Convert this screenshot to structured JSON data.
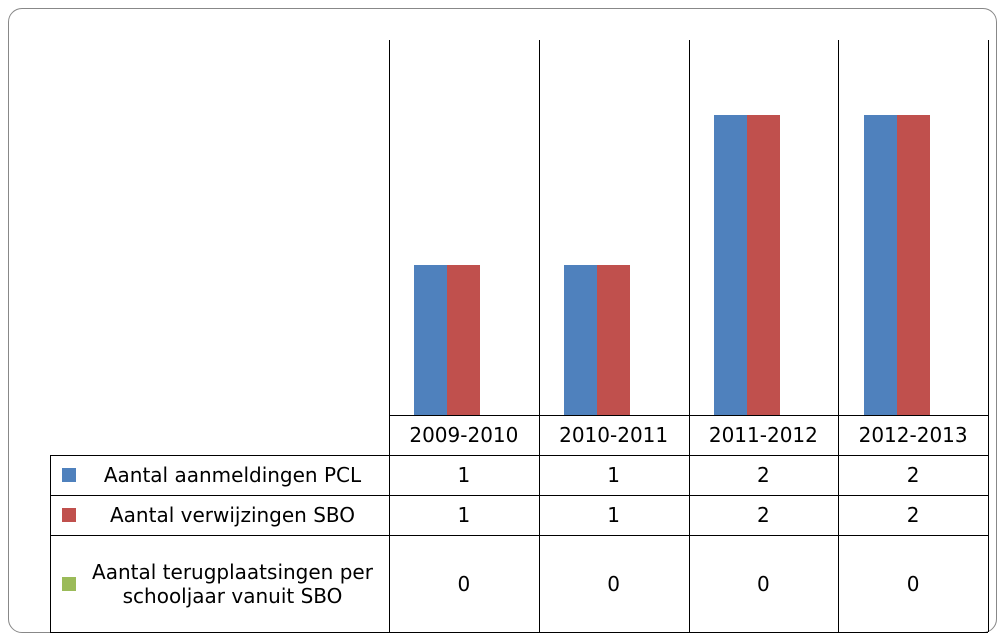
{
  "chart_data": {
    "type": "bar",
    "categories": [
      "2009-2010",
      "2010-2011",
      "2011-2012",
      "2012-2013"
    ],
    "series": [
      {
        "name": "Aantal aanmeldingen PCL",
        "color": "#4f81bd",
        "values": [
          1,
          1,
          2,
          2
        ]
      },
      {
        "name": "Aantal verwijzingen SBO",
        "color": "#c0504d",
        "values": [
          1,
          1,
          2,
          2
        ]
      },
      {
        "name": "Aantal terugplaatsingen per schooljaar vanuit SBO",
        "color": "#9bbb59",
        "values": [
          0,
          0,
          0,
          0
        ]
      }
    ],
    "ylim": [
      0,
      2.5
    ]
  }
}
